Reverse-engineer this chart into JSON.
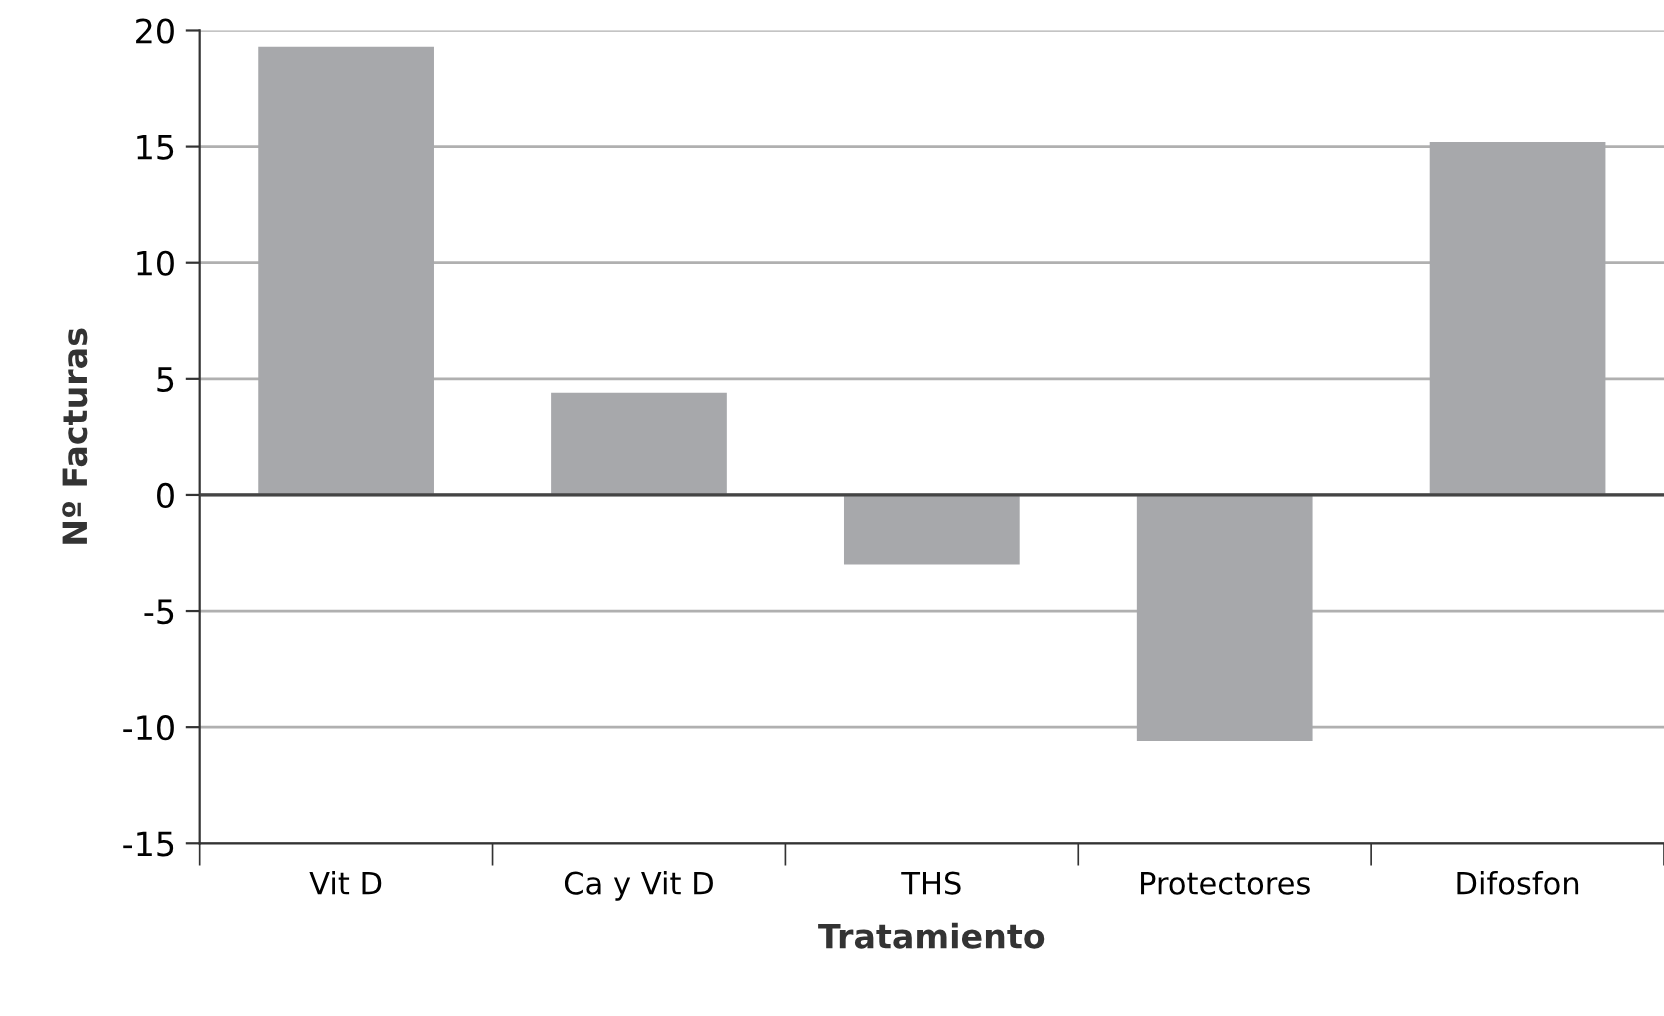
{
  "chart_data": {
    "type": "bar",
    "xlabel": "Tratamiento",
    "ylabel": "Nº Facturas",
    "categories": [
      "Vit D",
      "Ca y Vit D",
      "THS",
      "Protectores",
      "Difosfon"
    ],
    "values": [
      19.3,
      4.4,
      -3.0,
      -10.6,
      15.2
    ],
    "color": "#a7a8ab",
    "ylim": [
      -15,
      20
    ],
    "yticks": [
      -15,
      -10,
      -5,
      0,
      5,
      10,
      15,
      20
    ],
    "grid": "y",
    "legend": false
  }
}
